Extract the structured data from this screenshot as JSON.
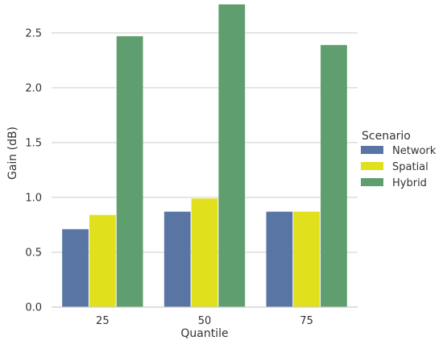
{
  "chart_data": {
    "type": "bar",
    "title": "",
    "xlabel": "Quantile",
    "ylabel": "Gain (dB)",
    "categories": [
      "25",
      "50",
      "75"
    ],
    "ylim": [
      0,
      2.8
    ],
    "yticks": [
      "0.0",
      "0.5",
      "1.0",
      "1.5",
      "2.0",
      "2.5"
    ],
    "grid": "horizontal",
    "legend": {
      "title": "Scenario",
      "placement": "right"
    },
    "series": [
      {
        "name": "Network",
        "color": "#5875a4",
        "values": [
          0.71,
          0.87,
          0.87
        ]
      },
      {
        "name": "Spatial",
        "color": "#e0e01c",
        "values": [
          0.84,
          0.99,
          0.87
        ]
      },
      {
        "name": "Hybrid",
        "color": "#5f9e6e",
        "values": [
          2.47,
          2.76,
          2.39
        ]
      }
    ]
  }
}
